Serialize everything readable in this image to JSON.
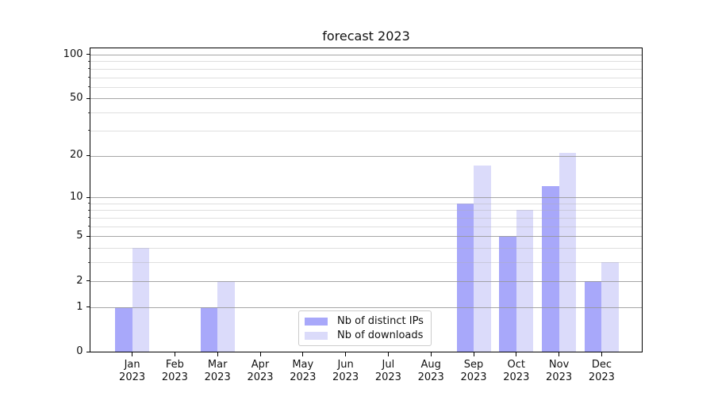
{
  "figure": {
    "title": "forecast 2023",
    "background": "#ffffff"
  },
  "chart_data": {
    "type": "bar",
    "title": "forecast 2023",
    "scale": "log1p",
    "grid": true,
    "categories": [
      "Jan",
      "Feb",
      "Mar",
      "Apr",
      "May",
      "Jun",
      "Jul",
      "Aug",
      "Sep",
      "Oct",
      "Nov",
      "Dec"
    ],
    "category_year": "2023",
    "series": [
      {
        "name": "Nb of distinct IPs",
        "color": "#a8a8fa",
        "values": [
          1,
          0,
          1,
          0,
          0,
          0,
          0,
          0,
          9,
          5,
          12,
          2
        ]
      },
      {
        "name": "Nb of downloads",
        "color": "#dbdbfa",
        "values": [
          4,
          0,
          2,
          0,
          0,
          0,
          0,
          0,
          17,
          8,
          21,
          3
        ]
      }
    ],
    "y_major_ticks": [
      0,
      1,
      2,
      5,
      10,
      20,
      50,
      100
    ],
    "y_minor_ticks": [
      3,
      4,
      6,
      7,
      8,
      9,
      30,
      40,
      60,
      70,
      80,
      90
    ],
    "ylim": [
      0,
      113
    ],
    "legend": {
      "position": "lower center",
      "entries": [
        "Nb of distinct IPs",
        "Nb of downloads"
      ]
    }
  },
  "colors": {
    "axis": "#000000",
    "text": "#111111",
    "grid_major": "#b0b0b0",
    "grid_minor": "#e4e4e4",
    "legend_border": "#cccccc",
    "bar_distinct_ips": "#a8a8fa",
    "bar_downloads": "#dbdbfa"
  }
}
